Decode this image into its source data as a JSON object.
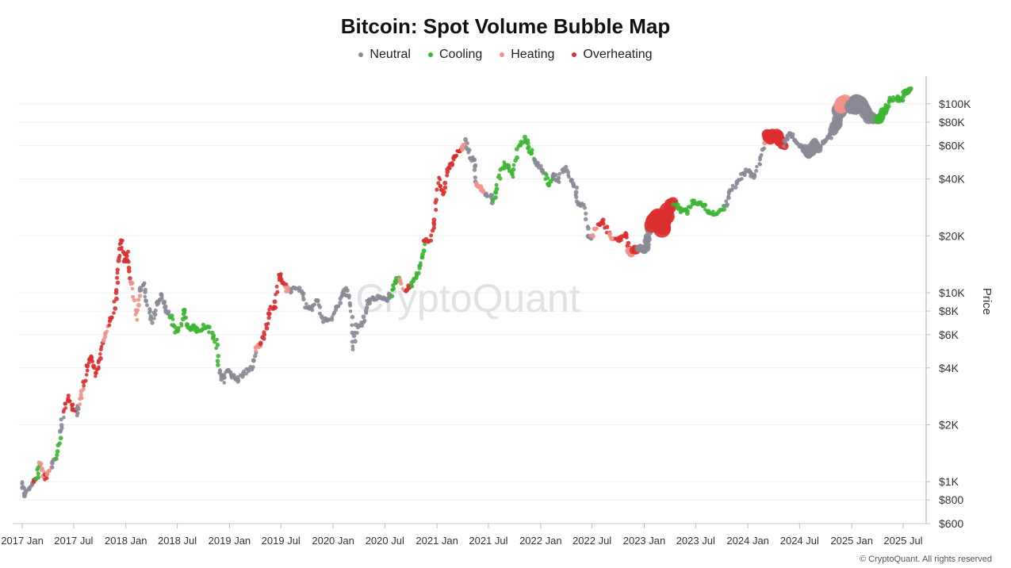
{
  "chart_data": {
    "type": "scatter",
    "title": "Bitcoin: Spot Volume Bubble Map",
    "ylabel": "Price",
    "xlabel": "",
    "y_scale": "log",
    "ylim": [
      600,
      140000
    ],
    "xlim": [
      "2016-12-15",
      "2025-09-20"
    ],
    "grid": true,
    "legend_position": "top-center",
    "watermark": "CryptoQuant",
    "credit": "© CryptoQuant. All rights reserved",
    "y_ticks": [
      {
        "value": 600,
        "label": "$600"
      },
      {
        "value": 800,
        "label": "$800"
      },
      {
        "value": 1000,
        "label": "$1K"
      },
      {
        "value": 2000,
        "label": "$2K"
      },
      {
        "value": 4000,
        "label": "$4K"
      },
      {
        "value": 6000,
        "label": "$6K"
      },
      {
        "value": 8000,
        "label": "$8K"
      },
      {
        "value": 10000,
        "label": "$10K"
      },
      {
        "value": 20000,
        "label": "$20K"
      },
      {
        "value": 40000,
        "label": "$40K"
      },
      {
        "value": 60000,
        "label": "$60K"
      },
      {
        "value": 80000,
        "label": "$80K"
      },
      {
        "value": 100000,
        "label": "$100K"
      }
    ],
    "x_ticks": [
      {
        "date": "2017-01-01",
        "label": "2017 Jan"
      },
      {
        "date": "2017-07-01",
        "label": "2017 Jul"
      },
      {
        "date": "2018-01-01",
        "label": "2018 Jan"
      },
      {
        "date": "2018-07-01",
        "label": "2018 Jul"
      },
      {
        "date": "2019-01-01",
        "label": "2019 Jan"
      },
      {
        "date": "2019-07-01",
        "label": "2019 Jul"
      },
      {
        "date": "2020-01-01",
        "label": "2020 Jan"
      },
      {
        "date": "2020-07-01",
        "label": "2020 Jul"
      },
      {
        "date": "2021-01-01",
        "label": "2021 Jan"
      },
      {
        "date": "2021-07-01",
        "label": "2021 Jul"
      },
      {
        "date": "2022-01-01",
        "label": "2022 Jan"
      },
      {
        "date": "2022-07-01",
        "label": "2022 Jul"
      },
      {
        "date": "2023-01-01",
        "label": "2023 Jan"
      },
      {
        "date": "2023-07-01",
        "label": "2023 Jul"
      },
      {
        "date": "2024-01-01",
        "label": "2024 Jan"
      },
      {
        "date": "2024-07-01",
        "label": "2024 Jul"
      },
      {
        "date": "2025-01-01",
        "label": "2025 Jan"
      },
      {
        "date": "2025-07-01",
        "label": "2025 Jul"
      }
    ],
    "series": [
      {
        "name": "Neutral",
        "color": "#8a8a96"
      },
      {
        "name": "Cooling",
        "color": "#3cb532"
      },
      {
        "name": "Heating",
        "color": "#f0928a"
      },
      {
        "name": "Overheating",
        "color": "#db2f2f"
      }
    ],
    "points": [
      [
        "2017-01-01",
        1000,
        "Neutral",
        1
      ],
      [
        "2017-01-10",
        850,
        "Neutral",
        1
      ],
      [
        "2017-01-25",
        920,
        "Neutral",
        1
      ],
      [
        "2017-02-10",
        1000,
        "Overheating",
        1
      ],
      [
        "2017-02-20",
        1050,
        "Cooling",
        1
      ],
      [
        "2017-03-05",
        1250,
        "Heating",
        1
      ],
      [
        "2017-03-20",
        1050,
        "Overheating",
        1
      ],
      [
        "2017-04-01",
        1080,
        "Heating",
        1
      ],
      [
        "2017-04-15",
        1200,
        "Neutral",
        1
      ],
      [
        "2017-05-01",
        1350,
        "Cooling",
        1
      ],
      [
        "2017-05-15",
        1800,
        "Neutral",
        1
      ],
      [
        "2017-05-25",
        2300,
        "Overheating",
        1
      ],
      [
        "2017-06-10",
        2800,
        "Overheating",
        1
      ],
      [
        "2017-06-25",
        2500,
        "Overheating",
        1
      ],
      [
        "2017-07-10",
        2300,
        "Neutral",
        1
      ],
      [
        "2017-07-20",
        2600,
        "Heating",
        1
      ],
      [
        "2017-08-05",
        3200,
        "Overheating",
        1
      ],
      [
        "2017-08-20",
        4200,
        "Overheating",
        1
      ],
      [
        "2017-09-05",
        4600,
        "Overheating",
        1
      ],
      [
        "2017-09-15",
        3700,
        "Overheating",
        1
      ],
      [
        "2017-10-01",
        4300,
        "Overheating",
        1
      ],
      [
        "2017-10-15",
        5600,
        "Heating",
        1
      ],
      [
        "2017-11-01",
        6800,
        "Overheating",
        1
      ],
      [
        "2017-11-15",
        7500,
        "Overheating",
        1
      ],
      [
        "2017-12-01",
        10500,
        "Overheating",
        1
      ],
      [
        "2017-12-10",
        15500,
        "Overheating",
        1
      ],
      [
        "2017-12-17",
        19000,
        "Overheating",
        1
      ],
      [
        "2017-12-28",
        14500,
        "Overheating",
        1
      ],
      [
        "2018-01-05",
        16000,
        "Overheating",
        1
      ],
      [
        "2018-01-15",
        11500,
        "Heating",
        1
      ],
      [
        "2018-01-25",
        11000,
        "Heating",
        1
      ],
      [
        "2018-02-06",
        7200,
        "Heating",
        1
      ],
      [
        "2018-02-20",
        10500,
        "Neutral",
        1
      ],
      [
        "2018-03-05",
        11000,
        "Neutral",
        1
      ],
      [
        "2018-03-20",
        8500,
        "Neutral",
        1
      ],
      [
        "2018-04-05",
        6900,
        "Neutral",
        1
      ],
      [
        "2018-04-20",
        8800,
        "Neutral",
        1
      ],
      [
        "2018-05-05",
        9700,
        "Neutral",
        1
      ],
      [
        "2018-05-20",
        8300,
        "Neutral",
        1
      ],
      [
        "2018-06-05",
        7600,
        "Cooling",
        1
      ],
      [
        "2018-06-25",
        6200,
        "Cooling",
        1
      ],
      [
        "2018-07-10",
        6400,
        "Cooling",
        1
      ],
      [
        "2018-07-25",
        8200,
        "Cooling",
        1
      ],
      [
        "2018-08-10",
        6400,
        "Cooling",
        1
      ],
      [
        "2018-08-25",
        6700,
        "Cooling",
        1
      ],
      [
        "2018-09-10",
        6300,
        "Cooling",
        1
      ],
      [
        "2018-10-01",
        6600,
        "Cooling",
        1
      ],
      [
        "2018-10-20",
        6400,
        "Cooling",
        1
      ],
      [
        "2018-11-15",
        5500,
        "Cooling",
        1
      ],
      [
        "2018-11-25",
        4000,
        "Neutral",
        1
      ],
      [
        "2018-12-10",
        3400,
        "Neutral",
        1
      ],
      [
        "2018-12-25",
        3900,
        "Neutral",
        1
      ],
      [
        "2019-01-15",
        3600,
        "Neutral",
        1
      ],
      [
        "2019-02-01",
        3450,
        "Neutral",
        1
      ],
      [
        "2019-02-25",
        3800,
        "Neutral",
        1
      ],
      [
        "2019-03-20",
        4000,
        "Neutral",
        1
      ],
      [
        "2019-04-05",
        5000,
        "Heating",
        1
      ],
      [
        "2019-04-20",
        5300,
        "Overheating",
        1
      ],
      [
        "2019-05-10",
        6500,
        "Overheating",
        1
      ],
      [
        "2019-05-25",
        8200,
        "Overheating",
        1
      ],
      [
        "2019-06-10",
        8500,
        "Overheating",
        1
      ],
      [
        "2019-06-26",
        12500,
        "Overheating",
        1
      ],
      [
        "2019-07-05",
        11500,
        "Overheating",
        1
      ],
      [
        "2019-07-20",
        10500,
        "Heating",
        1
      ],
      [
        "2019-08-01",
        10200,
        "Neutral",
        1
      ],
      [
        "2019-08-20",
        10500,
        "Neutral",
        1
      ],
      [
        "2019-09-15",
        10200,
        "Neutral",
        1
      ],
      [
        "2019-10-01",
        8300,
        "Neutral",
        1
      ],
      [
        "2019-10-20",
        8200,
        "Neutral",
        1
      ],
      [
        "2019-11-05",
        9300,
        "Neutral",
        1
      ],
      [
        "2019-11-25",
        7200,
        "Neutral",
        1
      ],
      [
        "2019-12-15",
        7100,
        "Neutral",
        1
      ],
      [
        "2020-01-10",
        8000,
        "Neutral",
        1
      ],
      [
        "2020-02-01",
        9500,
        "Neutral",
        1
      ],
      [
        "2020-02-15",
        10300,
        "Neutral",
        1
      ],
      [
        "2020-03-01",
        8700,
        "Neutral",
        1
      ],
      [
        "2020-03-12",
        5000,
        "Neutral",
        1
      ],
      [
        "2020-03-25",
        6600,
        "Neutral",
        1
      ],
      [
        "2020-04-15",
        7000,
        "Neutral",
        1
      ],
      [
        "2020-05-01",
        8800,
        "Neutral",
        1
      ],
      [
        "2020-05-20",
        9300,
        "Neutral",
        1
      ],
      [
        "2020-06-15",
        9400,
        "Neutral",
        1
      ],
      [
        "2020-07-10",
        9200,
        "Neutral",
        1
      ],
      [
        "2020-07-25",
        9800,
        "Cooling",
        1
      ],
      [
        "2020-08-05",
        11500,
        "Cooling",
        1
      ],
      [
        "2020-08-20",
        11800,
        "Heating",
        1
      ],
      [
        "2020-09-10",
        10300,
        "Overheating",
        1
      ],
      [
        "2020-10-01",
        10800,
        "Cooling",
        1
      ],
      [
        "2020-10-20",
        12000,
        "Cooling",
        1
      ],
      [
        "2020-11-05",
        14500,
        "Cooling",
        1
      ],
      [
        "2020-11-20",
        18500,
        "Overheating",
        1
      ],
      [
        "2020-12-10",
        19000,
        "Overheating",
        1
      ],
      [
        "2020-12-25",
        25000,
        "Overheating",
        1
      ],
      [
        "2021-01-08",
        40000,
        "Overheating",
        1
      ],
      [
        "2021-01-20",
        33000,
        "Overheating",
        1
      ],
      [
        "2021-02-10",
        45000,
        "Overheating",
        1
      ],
      [
        "2021-02-25",
        48000,
        "Overheating",
        1
      ],
      [
        "2021-03-15",
        56000,
        "Overheating",
        1
      ],
      [
        "2021-04-01",
        58000,
        "Heating",
        1
      ],
      [
        "2021-04-14",
        63000,
        "Neutral",
        1
      ],
      [
        "2021-04-25",
        52000,
        "Neutral",
        1
      ],
      [
        "2021-05-12",
        50000,
        "Neutral",
        1
      ],
      [
        "2021-05-20",
        38000,
        "Heating",
        1
      ],
      [
        "2021-06-01",
        36000,
        "Heating",
        1
      ],
      [
        "2021-06-20",
        33000,
        "Neutral",
        1
      ],
      [
        "2021-07-10",
        33500,
        "Neutral",
        1
      ],
      [
        "2021-07-20",
        30000,
        "Cooling",
        1
      ],
      [
        "2021-08-05",
        40000,
        "Cooling",
        1
      ],
      [
        "2021-08-25",
        48000,
        "Cooling",
        1
      ],
      [
        "2021-09-10",
        46000,
        "Cooling",
        1
      ],
      [
        "2021-09-25",
        42000,
        "Cooling",
        1
      ],
      [
        "2021-10-15",
        60000,
        "Cooling",
        1
      ],
      [
        "2021-11-08",
        66000,
        "Cooling",
        1
      ],
      [
        "2021-11-25",
        57000,
        "Cooling",
        1
      ],
      [
        "2021-12-10",
        50000,
        "Neutral",
        1
      ],
      [
        "2021-12-28",
        47000,
        "Neutral",
        1
      ],
      [
        "2022-01-15",
        42000,
        "Cooling",
        1
      ],
      [
        "2022-02-01",
        37000,
        "Cooling",
        1
      ],
      [
        "2022-02-15",
        43000,
        "Neutral",
        1
      ],
      [
        "2022-03-05",
        39000,
        "Neutral",
        1
      ],
      [
        "2022-03-28",
        47000,
        "Neutral",
        1
      ],
      [
        "2022-04-15",
        40000,
        "Neutral",
        1
      ],
      [
        "2022-05-05",
        36000,
        "Neutral",
        1
      ],
      [
        "2022-05-12",
        29000,
        "Neutral",
        1
      ],
      [
        "2022-06-01",
        30000,
        "Neutral",
        1
      ],
      [
        "2022-06-18",
        20000,
        "Neutral",
        1
      ],
      [
        "2022-07-01",
        19500,
        "Heating",
        1
      ],
      [
        "2022-07-20",
        23000,
        "Overheating",
        1
      ],
      [
        "2022-08-10",
        24000,
        "Overheating",
        1
      ],
      [
        "2022-09-01",
        20000,
        "Heating",
        1
      ],
      [
        "2022-09-20",
        19000,
        "Overheating",
        1
      ],
      [
        "2022-10-10",
        19200,
        "Overheating",
        1
      ],
      [
        "2022-10-30",
        20500,
        "Overheating",
        1
      ],
      [
        "2022-11-10",
        16500,
        "Heating",
        2
      ],
      [
        "2022-11-25",
        16400,
        "Overheating",
        2
      ],
      [
        "2022-12-15",
        17500,
        "Neutral",
        2
      ],
      [
        "2023-01-05",
        17000,
        "Neutral",
        2
      ],
      [
        "2023-01-15",
        21000,
        "Neutral",
        2
      ],
      [
        "2023-01-28",
        23000,
        "Overheating",
        4
      ],
      [
        "2023-02-15",
        24500,
        "Overheating",
        5
      ],
      [
        "2023-03-10",
        22000,
        "Overheating",
        4
      ],
      [
        "2023-03-25",
        28000,
        "Overheating",
        3
      ],
      [
        "2023-04-15",
        30000,
        "Cooling",
        1
      ],
      [
        "2023-05-10",
        27500,
        "Cooling",
        1
      ],
      [
        "2023-06-01",
        27000,
        "Cooling",
        1
      ],
      [
        "2023-06-25",
        30500,
        "Cooling",
        1
      ],
      [
        "2023-07-15",
        30000,
        "Cooling",
        1
      ],
      [
        "2023-08-01",
        29000,
        "Cooling",
        1
      ],
      [
        "2023-08-20",
        26000,
        "Cooling",
        1
      ],
      [
        "2023-09-15",
        26500,
        "Cooling",
        1
      ],
      [
        "2023-10-15",
        28500,
        "Neutral",
        1
      ],
      [
        "2023-10-28",
        34500,
        "Neutral",
        1
      ],
      [
        "2023-11-20",
        37000,
        "Neutral",
        1
      ],
      [
        "2023-12-10",
        42000,
        "Neutral",
        1
      ],
      [
        "2024-01-01",
        44000,
        "Neutral",
        1
      ],
      [
        "2024-01-20",
        41000,
        "Neutral",
        1
      ],
      [
        "2024-02-10",
        48000,
        "Neutral",
        1
      ],
      [
        "2024-02-28",
        62000,
        "Heating",
        1
      ],
      [
        "2024-03-10",
        68000,
        "Overheating",
        3
      ],
      [
        "2024-03-25",
        66000,
        "Overheating",
        3
      ],
      [
        "2024-04-10",
        70000,
        "Overheating",
        3
      ],
      [
        "2024-04-25",
        62000,
        "Overheating",
        2
      ],
      [
        "2024-05-10",
        61000,
        "Neutral",
        1
      ],
      [
        "2024-05-25",
        68000,
        "Neutral",
        1
      ],
      [
        "2024-06-10",
        67000,
        "Neutral",
        1
      ],
      [
        "2024-06-30",
        61000,
        "Neutral",
        1
      ],
      [
        "2024-07-15",
        57000,
        "Neutral",
        2
      ],
      [
        "2024-08-05",
        54000,
        "Neutral",
        3
      ],
      [
        "2024-08-25",
        62000,
        "Neutral",
        2
      ],
      [
        "2024-09-10",
        57000,
        "Neutral",
        1
      ],
      [
        "2024-09-28",
        64000,
        "Neutral",
        1
      ],
      [
        "2024-10-15",
        67000,
        "Neutral",
        1
      ],
      [
        "2024-11-01",
        72000,
        "Neutral",
        3
      ],
      [
        "2024-11-15",
        90000,
        "Neutral",
        4
      ],
      [
        "2024-11-25",
        97000,
        "Heating",
        4
      ],
      [
        "2024-12-10",
        100000,
        "Heating",
        3
      ],
      [
        "2024-12-25",
        95000,
        "Neutral",
        3
      ],
      [
        "2025-01-10",
        96000,
        "Neutral",
        4
      ],
      [
        "2025-01-25",
        104000,
        "Neutral",
        4
      ],
      [
        "2025-02-10",
        97000,
        "Neutral",
        3
      ],
      [
        "2025-02-28",
        85000,
        "Neutral",
        3
      ],
      [
        "2025-03-15",
        83000,
        "Neutral",
        2
      ],
      [
        "2025-04-01",
        82000,
        "Cooling",
        2
      ],
      [
        "2025-04-15",
        84000,
        "Cooling",
        2
      ],
      [
        "2025-05-01",
        96000,
        "Cooling",
        1
      ],
      [
        "2025-05-20",
        106000,
        "Cooling",
        1
      ],
      [
        "2025-06-10",
        107000,
        "Cooling",
        1
      ],
      [
        "2025-06-25",
        105000,
        "Cooling",
        1
      ],
      [
        "2025-07-10",
        116000,
        "Cooling",
        1
      ],
      [
        "2025-07-25",
        118000,
        "Cooling",
        1
      ]
    ]
  }
}
